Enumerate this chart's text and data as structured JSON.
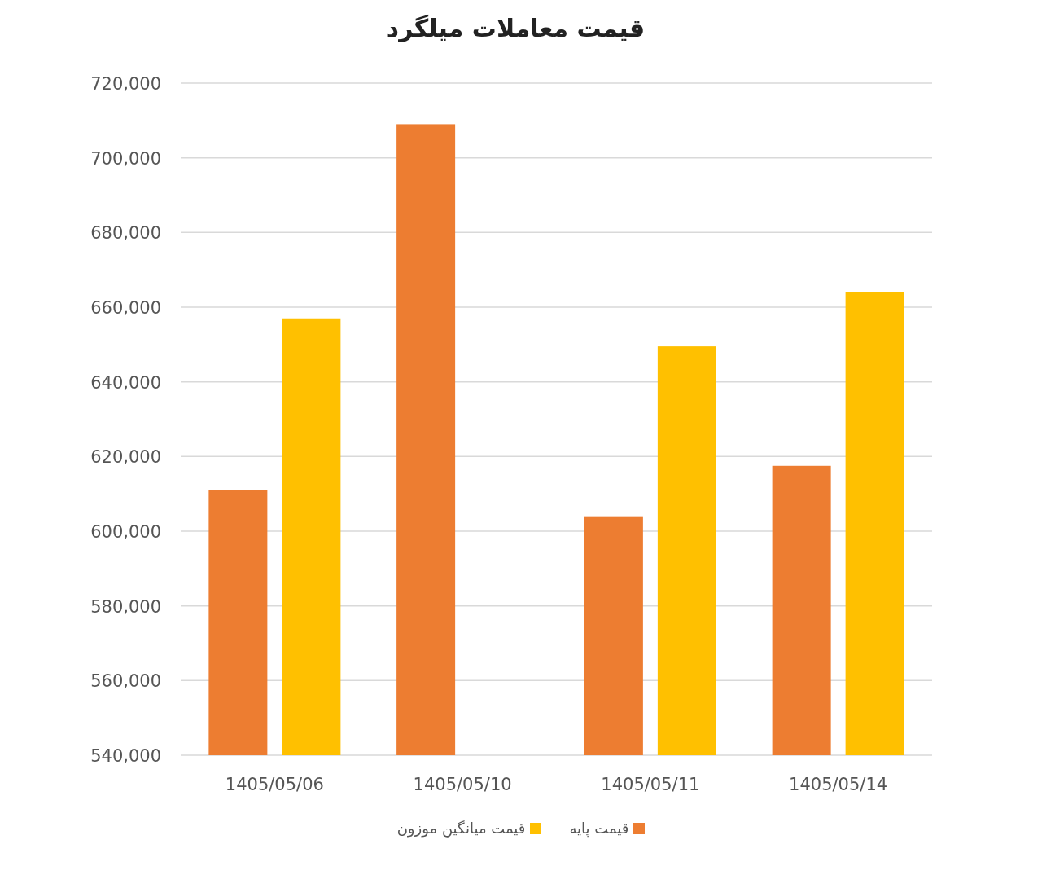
{
  "chart_data": {
    "type": "bar",
    "title": "قیمت معاملات میلگرد",
    "categories": [
      "1405/05/06",
      "1405/05/10",
      "1405/05/11",
      "1405/05/14"
    ],
    "series": [
      {
        "name": "قیمت پایه",
        "color": "#ed7d31",
        "values": [
          611000,
          709000,
          604000,
          617500
        ]
      },
      {
        "name": "قیمت میانگین موزون",
        "color": "#ffc000",
        "values": [
          657000,
          null,
          649500,
          664000
        ]
      }
    ],
    "ylim": [
      540000,
      720000
    ],
    "yticks": [
      {
        "value": 540000,
        "label": "540,000"
      },
      {
        "value": 560000,
        "label": "560,000"
      },
      {
        "value": 580000,
        "label": "580,000"
      },
      {
        "value": 600000,
        "label": "600,000"
      },
      {
        "value": 620000,
        "label": "620,000"
      },
      {
        "value": 640000,
        "label": "640,000"
      },
      {
        "value": 660000,
        "label": "660,000"
      },
      {
        "value": 680000,
        "label": "680,000"
      },
      {
        "value": 700000,
        "label": "700,000"
      },
      {
        "value": 720000,
        "label": "720,000"
      }
    ],
    "grid": "y",
    "legend": "bottom"
  }
}
